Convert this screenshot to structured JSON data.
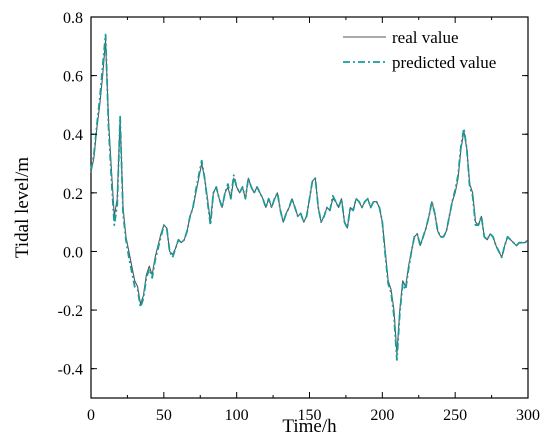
{
  "chart_data": {
    "type": "line",
    "title": "",
    "xlabel": "Time/h",
    "ylabel": "Tidal level/m",
    "xlim": [
      0,
      300
    ],
    "ylim": [
      -0.5,
      0.8
    ],
    "xticks": [
      0,
      50,
      100,
      150,
      200,
      250,
      300
    ],
    "xtick_labels": [
      "0",
      "50",
      "100",
      "150",
      "200",
      "250",
      "300"
    ],
    "yticks": [
      -0.4,
      -0.2,
      0.0,
      0.2,
      0.4,
      0.6,
      0.8
    ],
    "ytick_labels": [
      "-0.4",
      "-0.2",
      "0.0",
      "0.2",
      "0.4",
      "0.6",
      "0.8"
    ],
    "grid": false,
    "legend_position": "top-right",
    "series": [
      {
        "name": "real value",
        "color": "#555555",
        "style": "solid",
        "x": [
          0,
          2,
          4,
          6,
          8,
          10,
          12,
          14,
          16,
          18,
          20,
          22,
          24,
          26,
          28,
          30,
          32,
          34,
          36,
          38,
          40,
          42,
          44,
          46,
          48,
          50,
          52,
          54,
          56,
          58,
          60,
          62,
          64,
          66,
          68,
          70,
          72,
          74,
          76,
          78,
          80,
          82,
          84,
          86,
          88,
          90,
          92,
          94,
          96,
          98,
          100,
          102,
          104,
          106,
          108,
          110,
          112,
          114,
          116,
          118,
          120,
          122,
          124,
          126,
          128,
          130,
          132,
          134,
          136,
          138,
          140,
          142,
          144,
          146,
          148,
          150,
          152,
          154,
          156,
          158,
          160,
          162,
          164,
          166,
          168,
          170,
          172,
          174,
          176,
          178,
          180,
          182,
          184,
          186,
          188,
          190,
          192,
          194,
          196,
          198,
          200,
          202,
          204,
          206,
          208,
          210,
          212,
          214,
          216,
          218,
          220,
          222,
          224,
          226,
          228,
          230,
          232,
          234,
          236,
          238,
          240,
          242,
          244,
          246,
          248,
          250,
          252,
          254,
          256,
          258,
          260,
          262,
          264,
          266,
          268,
          270,
          272,
          274,
          276,
          278,
          280,
          282,
          284,
          286,
          288,
          290,
          292,
          294,
          296,
          298,
          300
        ],
        "y": [
          0.27,
          0.32,
          0.42,
          0.5,
          0.6,
          0.72,
          0.45,
          0.28,
          0.12,
          0.18,
          0.45,
          0.15,
          0.05,
          0.0,
          -0.05,
          -0.1,
          -0.12,
          -0.18,
          -0.15,
          -0.08,
          -0.05,
          -0.08,
          -0.02,
          0.02,
          0.06,
          0.09,
          0.08,
          0.0,
          -0.01,
          0.01,
          0.04,
          0.03,
          0.04,
          0.07,
          0.12,
          0.15,
          0.2,
          0.25,
          0.3,
          0.25,
          0.18,
          0.1,
          0.2,
          0.22,
          0.18,
          0.15,
          0.2,
          0.22,
          0.18,
          0.25,
          0.22,
          0.2,
          0.22,
          0.18,
          0.25,
          0.22,
          0.2,
          0.22,
          0.2,
          0.18,
          0.15,
          0.18,
          0.15,
          0.18,
          0.2,
          0.14,
          0.1,
          0.13,
          0.15,
          0.18,
          0.15,
          0.12,
          0.13,
          0.1,
          0.12,
          0.18,
          0.24,
          0.25,
          0.15,
          0.1,
          0.12,
          0.15,
          0.14,
          0.18,
          0.17,
          0.15,
          0.18,
          0.1,
          0.08,
          0.15,
          0.14,
          0.18,
          0.17,
          0.15,
          0.17,
          0.18,
          0.15,
          0.17,
          0.17,
          0.15,
          0.1,
          0.0,
          -0.1,
          -0.13,
          -0.2,
          -0.35,
          -0.2,
          -0.1,
          -0.12,
          -0.05,
          0.0,
          0.05,
          0.06,
          0.02,
          0.05,
          0.08,
          0.12,
          0.17,
          0.13,
          0.07,
          0.05,
          0.05,
          0.07,
          0.12,
          0.17,
          0.2,
          0.25,
          0.35,
          0.41,
          0.35,
          0.23,
          0.2,
          0.1,
          0.09,
          0.12,
          0.05,
          0.04,
          0.06,
          0.05,
          0.02,
          0.0,
          -0.02,
          0.02,
          0.05,
          0.04,
          0.03,
          0.02,
          0.03,
          0.03,
          0.03,
          0.04
        ],
        "note_ignore": ""
      },
      {
        "name": "predicted value",
        "color": "#1a9a9a",
        "style": "dashdot",
        "x": [
          0,
          2,
          4,
          6,
          8,
          10,
          12,
          14,
          16,
          18,
          20,
          22,
          24,
          26,
          28,
          30,
          32,
          34,
          36,
          38,
          40,
          42,
          44,
          46,
          48,
          50,
          52,
          54,
          56,
          58,
          60,
          62,
          64,
          66,
          68,
          70,
          72,
          74,
          76,
          78,
          80,
          82,
          84,
          86,
          88,
          90,
          92,
          94,
          96,
          98,
          100,
          102,
          104,
          106,
          108,
          110,
          112,
          114,
          116,
          118,
          120,
          122,
          124,
          126,
          128,
          130,
          132,
          134,
          136,
          138,
          140,
          142,
          144,
          146,
          148,
          150,
          152,
          154,
          156,
          158,
          160,
          162,
          164,
          166,
          168,
          170,
          172,
          174,
          176,
          178,
          180,
          182,
          184,
          186,
          188,
          190,
          192,
          194,
          196,
          198,
          200,
          202,
          204,
          206,
          208,
          210,
          212,
          214,
          216,
          218,
          220,
          222,
          224,
          226,
          228,
          230,
          232,
          234,
          236,
          238,
          240,
          242,
          244,
          246,
          248,
          250,
          252,
          254,
          256,
          258,
          260,
          262,
          264,
          266,
          268,
          270,
          272,
          274,
          276,
          278,
          280,
          282,
          284,
          286,
          288,
          290,
          292,
          294,
          296,
          298,
          300
        ],
        "y": [
          0.28,
          0.33,
          0.43,
          0.52,
          0.63,
          0.74,
          0.43,
          0.25,
          0.09,
          0.16,
          0.46,
          0.13,
          0.04,
          -0.02,
          -0.07,
          -0.12,
          -0.13,
          -0.19,
          -0.16,
          -0.09,
          -0.06,
          -0.09,
          -0.03,
          0.01,
          0.05,
          0.09,
          0.08,
          0.0,
          -0.02,
          0.01,
          0.04,
          0.03,
          0.04,
          0.07,
          0.12,
          0.15,
          0.21,
          0.26,
          0.31,
          0.25,
          0.17,
          0.09,
          0.2,
          0.22,
          0.18,
          0.15,
          0.2,
          0.23,
          0.18,
          0.26,
          0.22,
          0.2,
          0.22,
          0.18,
          0.25,
          0.22,
          0.2,
          0.22,
          0.2,
          0.18,
          0.15,
          0.18,
          0.15,
          0.18,
          0.2,
          0.14,
          0.1,
          0.13,
          0.15,
          0.18,
          0.15,
          0.12,
          0.13,
          0.1,
          0.12,
          0.18,
          0.24,
          0.25,
          0.15,
          0.1,
          0.12,
          0.15,
          0.14,
          0.19,
          0.17,
          0.15,
          0.18,
          0.1,
          0.08,
          0.15,
          0.14,
          0.18,
          0.17,
          0.15,
          0.17,
          0.18,
          0.15,
          0.17,
          0.17,
          0.15,
          0.1,
          -0.01,
          -0.11,
          -0.14,
          -0.22,
          -0.37,
          -0.21,
          -0.11,
          -0.13,
          -0.06,
          0.0,
          0.05,
          0.06,
          0.02,
          0.05,
          0.08,
          0.12,
          0.17,
          0.13,
          0.07,
          0.05,
          0.05,
          0.07,
          0.12,
          0.17,
          0.21,
          0.26,
          0.36,
          0.42,
          0.35,
          0.22,
          0.19,
          0.09,
          0.09,
          0.12,
          0.05,
          0.04,
          0.06,
          0.05,
          0.02,
          0.0,
          -0.02,
          0.02,
          0.05,
          0.04,
          0.03,
          0.02,
          0.03,
          0.03,
          0.03,
          0.04
        ]
      }
    ]
  }
}
